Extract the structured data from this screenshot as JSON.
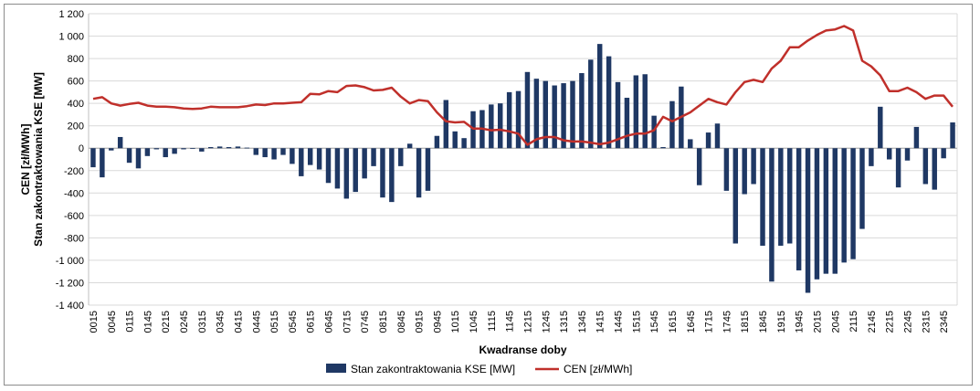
{
  "chart_data": {
    "type": "bar",
    "xlabel": "Kwadranse doby",
    "ylabel": "CEN  [zł/MWh]\nStan zakontraktowania KSE [MW]",
    "ylim": [
      -1400,
      1200
    ],
    "ytick_step": 200,
    "ytick_labels": [
      "-1 400",
      "-1 200",
      "-1 000",
      "-800",
      "-600",
      "-400",
      "-200",
      "0",
      "200",
      "400",
      "600",
      "800",
      "1 000",
      "1 200"
    ],
    "grid": true,
    "legend_position": "bottom",
    "x": [
      "0015",
      "0030",
      "0045",
      "0100",
      "0115",
      "0130",
      "0145",
      "0200",
      "0215",
      "0230",
      "0245",
      "0300",
      "0315",
      "0330",
      "0345",
      "0400",
      "0415",
      "0430",
      "0445",
      "0500",
      "0515",
      "0530",
      "0545",
      "0600",
      "0615",
      "0630",
      "0645",
      "0700",
      "0715",
      "0730",
      "0745",
      "0800",
      "0815",
      "0830",
      "0845",
      "0900",
      "0915",
      "0930",
      "0945",
      "1000",
      "1015",
      "1030",
      "1045",
      "1100",
      "1115",
      "1130",
      "1145",
      "1200",
      "1215",
      "1230",
      "1245",
      "1300",
      "1315",
      "1330",
      "1345",
      "1400",
      "1415",
      "1430",
      "1445",
      "1500",
      "1515",
      "1530",
      "1545",
      "1600",
      "1615",
      "1630",
      "1645",
      "1700",
      "1715",
      "1730",
      "1745",
      "1800",
      "1815",
      "1830",
      "1845",
      "1900",
      "1915",
      "1930",
      "1945",
      "2000",
      "2015",
      "2030",
      "2045",
      "2100",
      "2115",
      "2130",
      "2145",
      "2200",
      "2215",
      "2230",
      "2245",
      "2300",
      "2315",
      "2330",
      "2345",
      "0000"
    ],
    "x_tick_labels": [
      "0015",
      "0045",
      "0115",
      "0145",
      "0215",
      "0245",
      "0315",
      "0345",
      "0415",
      "0445",
      "0515",
      "0545",
      "0615",
      "0645",
      "0715",
      "0745",
      "0815",
      "0845",
      "0915",
      "0945",
      "1015",
      "1045",
      "1115",
      "1145",
      "1215",
      "1245",
      "1315",
      "1345",
      "1415",
      "1445",
      "1515",
      "1545",
      "1615",
      "1645",
      "1715",
      "1745",
      "1815",
      "1845",
      "1915",
      "1945",
      "2015",
      "2045",
      "2115",
      "2145",
      "2215",
      "2245",
      "2315",
      "2345"
    ],
    "series": [
      {
        "name": "Stan zakontraktowania KSE [MW]",
        "type": "bar",
        "color": "#1f3864",
        "values": [
          -170,
          -260,
          -20,
          100,
          -130,
          -180,
          -70,
          -10,
          -80,
          -50,
          -10,
          -5,
          -30,
          10,
          15,
          10,
          15,
          5,
          -60,
          -80,
          -100,
          -60,
          -140,
          -250,
          -150,
          -190,
          -310,
          -360,
          -450,
          -390,
          -270,
          -160,
          -440,
          -480,
          -160,
          40,
          -440,
          -380,
          110,
          430,
          150,
          90,
          330,
          340,
          390,
          400,
          500,
          510,
          680,
          620,
          600,
          560,
          580,
          600,
          670,
          790,
          930,
          820,
          590,
          450,
          650,
          660,
          290,
          10,
          420,
          550,
          80,
          -330,
          140,
          220,
          -380,
          -850,
          -410,
          -320,
          -870,
          -1190,
          -870,
          -850,
          -1090,
          -1290,
          -1170,
          -1120,
          -1120,
          -1020,
          -990,
          -720,
          -160,
          370,
          -100,
          -350,
          -110,
          190,
          -320,
          -370,
          -90,
          230
        ]
      },
      {
        "name": "CEN [zł/MWh]",
        "type": "line",
        "color": "#c0302b",
        "values": [
          440,
          455,
          400,
          380,
          395,
          405,
          380,
          370,
          370,
          365,
          355,
          350,
          355,
          370,
          365,
          365,
          365,
          375,
          390,
          385,
          400,
          400,
          405,
          410,
          485,
          480,
          510,
          500,
          555,
          560,
          545,
          515,
          520,
          540,
          460,
          400,
          430,
          420,
          320,
          240,
          230,
          235,
          175,
          175,
          160,
          165,
          150,
          130,
          30,
          80,
          100,
          100,
          70,
          60,
          60,
          50,
          35,
          50,
          80,
          110,
          130,
          130,
          160,
          280,
          240,
          280,
          320,
          380,
          440,
          410,
          390,
          500,
          590,
          610,
          590,
          710,
          780,
          900,
          900,
          960,
          1010,
          1050,
          1060,
          1090,
          1050,
          780,
          730,
          650,
          510,
          510,
          540,
          500,
          440,
          470,
          470,
          370
        ]
      }
    ]
  }
}
